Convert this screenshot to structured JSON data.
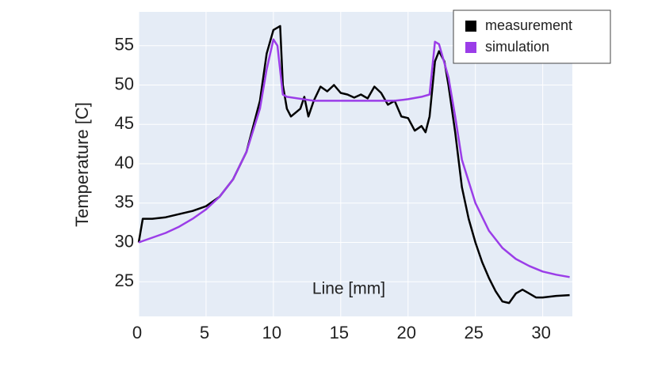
{
  "chart_data": {
    "type": "line",
    "x_label": "Line [mm]",
    "y_label": "Temperature [C]",
    "xlim": [
      0,
      32.2
    ],
    "ylim": [
      20.6,
      59.3
    ],
    "xticks": [
      0,
      5,
      10,
      15,
      20,
      25,
      30
    ],
    "yticks": [
      25,
      30,
      35,
      40,
      45,
      50,
      55
    ],
    "grid": true,
    "legend": "top-right",
    "series": [
      {
        "name": "measurement",
        "color": "#000000",
        "x": [
          0,
          0.3,
          1,
          2,
          3,
          4,
          5,
          6,
          7,
          8,
          9,
          9.5,
          10,
          10.5,
          10.7,
          11,
          11.3,
          12,
          12.3,
          12.6,
          13,
          13.5,
          14,
          14.5,
          15,
          15.5,
          16,
          16.5,
          17,
          17.5,
          18,
          18.5,
          19,
          19.5,
          20,
          20.5,
          21,
          21.3,
          21.6,
          22,
          22.3,
          22.7,
          23,
          23.5,
          24,
          24.5,
          25,
          25.5,
          26,
          26.5,
          27,
          27.5,
          28,
          28.5,
          29,
          29.5,
          30,
          31,
          32
        ],
        "values": [
          30,
          33,
          33,
          33.2,
          33.6,
          34,
          34.6,
          35.8,
          38,
          41.5,
          48,
          54,
          57,
          57.5,
          50,
          47,
          46,
          47,
          48.5,
          46,
          48,
          49.8,
          49.2,
          50,
          49,
          48.8,
          48.4,
          48.8,
          48.3,
          49.8,
          49,
          47.5,
          48,
          46,
          45.8,
          44.2,
          44.8,
          44,
          46,
          53,
          54.3,
          53,
          50,
          44,
          37,
          33,
          30,
          27.5,
          25.5,
          23.8,
          22.5,
          22.3,
          23.5,
          24,
          23.5,
          23,
          23,
          23.2,
          23.3
        ]
      },
      {
        "name": "simulation",
        "color": "#9b3de8",
        "x": [
          0,
          1,
          2,
          3,
          4,
          5,
          6,
          7,
          8,
          9,
          9.5,
          10,
          10.3,
          10.7,
          11,
          13,
          15,
          17,
          19,
          20,
          21,
          21.6,
          22,
          22.3,
          23,
          23.5,
          24,
          25,
          26,
          27,
          28,
          29,
          30,
          31,
          32
        ],
        "values": [
          30,
          30.6,
          31.2,
          32,
          33,
          34.2,
          35.8,
          38,
          41.5,
          47,
          52,
          55.8,
          55,
          48.8,
          48.5,
          48,
          48,
          48,
          48,
          48.2,
          48.5,
          48.8,
          55.5,
          55.2,
          51,
          46,
          40.5,
          35,
          31.5,
          29.3,
          27.9,
          27,
          26.3,
          25.9,
          25.6
        ]
      }
    ]
  }
}
